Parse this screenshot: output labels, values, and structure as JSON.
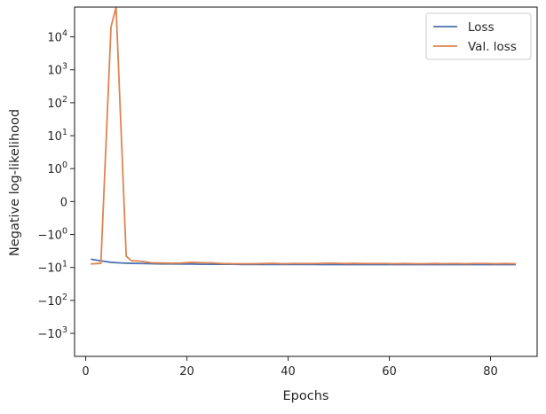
{
  "chart_data": {
    "type": "line",
    "xlabel": "Epochs",
    "ylabel": "Negative log-likelihood",
    "yscale": "symlog",
    "xlim": [
      -2.2,
      89.2
    ],
    "ylim": [
      -5000,
      80000
    ],
    "x_ticks": [
      0,
      20,
      40,
      60,
      80
    ],
    "y_ticks": [
      {
        "value": 10000,
        "base": "10",
        "exp": "4"
      },
      {
        "value": 1000,
        "base": "10",
        "exp": "3"
      },
      {
        "value": 100,
        "base": "10",
        "exp": "2"
      },
      {
        "value": 10,
        "base": "10",
        "exp": "1"
      },
      {
        "value": 1,
        "base": "10",
        "exp": "0"
      },
      {
        "value": 0,
        "base": "0",
        "exp": ""
      },
      {
        "value": -1,
        "base": "−10",
        "exp": "0"
      },
      {
        "value": -10,
        "base": "−10",
        "exp": "1"
      },
      {
        "value": -100,
        "base": "−10",
        "exp": "2"
      },
      {
        "value": -1000,
        "base": "−10",
        "exp": "3"
      }
    ],
    "legend_position": "top-right",
    "series": [
      {
        "name": "Loss",
        "color": "#4c72b0",
        "x": [
          1,
          3,
          5,
          7,
          9,
          11,
          13,
          15,
          17,
          19,
          21,
          23,
          25,
          27,
          29,
          31,
          33,
          35,
          37,
          39,
          41,
          43,
          45,
          47,
          49,
          51,
          53,
          55,
          57,
          59,
          61,
          63,
          65,
          67,
          69,
          71,
          73,
          75,
          77,
          79,
          81,
          83,
          85
        ],
        "y": [
          -5.6,
          -6.3,
          -7.0,
          -7.3,
          -7.5,
          -7.6,
          -7.7,
          -7.8,
          -7.8,
          -7.9,
          -7.9,
          -8.0,
          -8.0,
          -8.0,
          -8.0,
          -8.1,
          -8.1,
          -8.1,
          -8.1,
          -8.1,
          -8.1,
          -8.1,
          -8.1,
          -8.2,
          -8.2,
          -8.2,
          -8.2,
          -8.2,
          -8.2,
          -8.2,
          -8.2,
          -8.2,
          -8.2,
          -8.2,
          -8.2,
          -8.2,
          -8.2,
          -8.2,
          -8.2,
          -8.2,
          -8.2,
          -8.2,
          -8.2
        ]
      },
      {
        "name": "Val. loss",
        "color": "#dd8452",
        "x": [
          1,
          3,
          5,
          6,
          8,
          9,
          11,
          13,
          15,
          17,
          19,
          21,
          23,
          25,
          27,
          29,
          31,
          33,
          35,
          37,
          39,
          41,
          43,
          45,
          47,
          49,
          51,
          53,
          55,
          57,
          59,
          61,
          63,
          65,
          67,
          69,
          71,
          73,
          75,
          77,
          79,
          81,
          83,
          85
        ],
        "y": [
          -7.8,
          -7.5,
          20000,
          80000,
          -4.5,
          -6.2,
          -6.5,
          -7.2,
          -7.3,
          -7.4,
          -7.3,
          -7.0,
          -7.2,
          -7.3,
          -7.6,
          -7.7,
          -7.7,
          -7.7,
          -7.6,
          -7.5,
          -7.7,
          -7.6,
          -7.6,
          -7.6,
          -7.5,
          -7.4,
          -7.6,
          -7.5,
          -7.6,
          -7.6,
          -7.6,
          -7.7,
          -7.6,
          -7.7,
          -7.7,
          -7.6,
          -7.7,
          -7.6,
          -7.7,
          -7.6,
          -7.6,
          -7.7,
          -7.6,
          -7.7
        ]
      }
    ]
  }
}
